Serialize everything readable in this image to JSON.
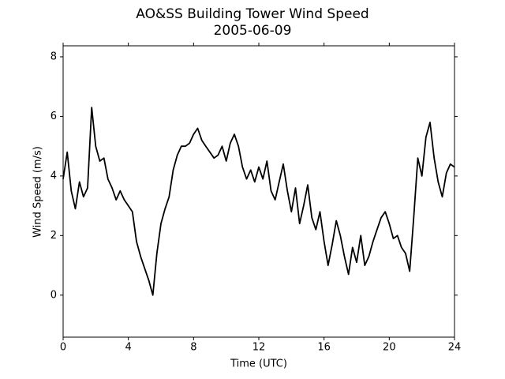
{
  "chart_data": {
    "type": "line",
    "title": "AO&SS Building Tower Wind Speed",
    "subtitle": "2005-06-09",
    "x_label": "Time (UTC)",
    "y_label": "Wind Speed (m/s)",
    "x": [
      0,
      0.25,
      0.5,
      0.75,
      1,
      1.25,
      1.5,
      1.75,
      2,
      2.25,
      2.5,
      2.75,
      3,
      3.25,
      3.5,
      3.75,
      4,
      4.25,
      4.5,
      4.75,
      5,
      5.25,
      5.5,
      5.75,
      6,
      6.25,
      6.5,
      6.75,
      7,
      7.25,
      7.5,
      7.75,
      8,
      8.25,
      8.5,
      8.75,
      9,
      9.25,
      9.5,
      9.75,
      10,
      10.25,
      10.5,
      10.75,
      11,
      11.25,
      11.5,
      11.75,
      12,
      12.25,
      12.5,
      12.75,
      13,
      13.25,
      13.5,
      13.75,
      14,
      14.25,
      14.5,
      14.75,
      15,
      15.25,
      15.5,
      15.75,
      16,
      16.25,
      16.5,
      16.75,
      17,
      17.25,
      17.5,
      17.75,
      18,
      18.25,
      18.5,
      18.75,
      19,
      19.25,
      19.5,
      19.75,
      20,
      20.25,
      20.5,
      20.75,
      21,
      21.25,
      21.5,
      21.75,
      22,
      22.25,
      22.5,
      22.75,
      23,
      23.25,
      23.5,
      23.75,
      24
    ],
    "series": [
      {
        "name": "Wind Speed",
        "color": "#000000",
        "values": [
          3.9,
          4.8,
          3.5,
          2.9,
          3.8,
          3.3,
          3.6,
          6.3,
          5.0,
          4.5,
          4.6,
          3.9,
          3.6,
          3.2,
          3.5,
          3.2,
          3.0,
          2.8,
          1.8,
          1.3,
          0.9,
          0.5,
          0.0,
          1.4,
          2.4,
          2.9,
          3.3,
          4.2,
          4.7,
          5.0,
          5.0,
          5.1,
          5.4,
          5.6,
          5.2,
          5.0,
          4.8,
          4.6,
          4.7,
          5.0,
          4.5,
          5.1,
          5.4,
          5.0,
          4.3,
          3.9,
          4.2,
          3.8,
          4.3,
          3.9,
          4.5,
          3.5,
          3.2,
          3.8,
          4.4,
          3.5,
          2.8,
          3.6,
          2.4,
          3.0,
          3.7,
          2.6,
          2.2,
          2.8,
          1.8,
          1.0,
          1.7,
          2.5,
          2.0,
          1.3,
          0.7,
          1.6,
          1.1,
          2.0,
          1.0,
          1.3,
          1.8,
          2.2,
          2.6,
          2.8,
          2.4,
          1.9,
          2.0,
          1.6,
          1.4,
          0.8,
          2.6,
          4.6,
          4.0,
          5.3,
          5.8,
          4.6,
          3.8,
          3.3,
          4.1,
          4.4,
          4.3
        ]
      }
    ],
    "xlim": [
      0,
      24
    ],
    "xticks": [
      0,
      4,
      8,
      12,
      16,
      20,
      24
    ],
    "ylim": [
      -1.41,
      8.37
    ],
    "yticks": [
      0,
      2,
      4,
      6,
      8
    ],
    "grid": false
  }
}
